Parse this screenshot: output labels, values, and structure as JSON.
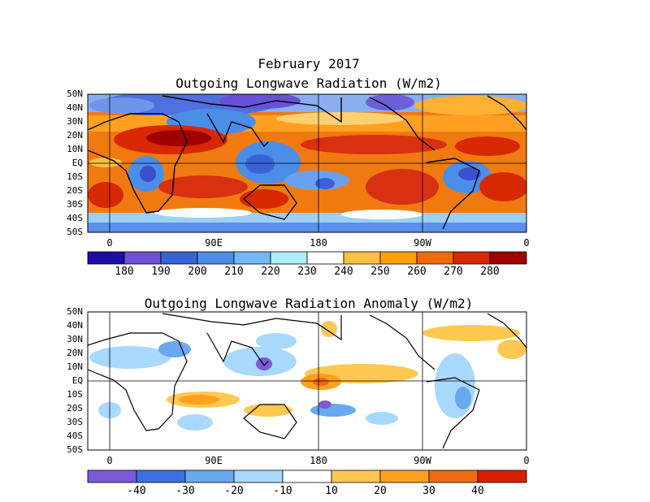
{
  "main_title": "February 2017",
  "panels": [
    {
      "title": "Outgoing Longwave Radiation (W/m2)",
      "lat_labels": [
        "50N",
        "40N",
        "30N",
        "20N",
        "10N",
        "EQ",
        "10S",
        "20S",
        "30S",
        "40S",
        "50S"
      ],
      "lon_labels": [
        "0",
        "90E",
        "180",
        "90W",
        "0"
      ],
      "colorbar": {
        "colors": [
          "#1c0ca8",
          "#6e4fd8",
          "#3a62d8",
          "#4a8ee8",
          "#72b8f4",
          "#b0ecfc",
          "#ffffff",
          "#ffc040",
          "#ffa000",
          "#f06a00",
          "#d82800",
          "#a00000"
        ],
        "labels": [
          "180",
          "190",
          "200",
          "210",
          "220",
          "230",
          "240",
          "250",
          "260",
          "270",
          "280"
        ]
      }
    },
    {
      "title": "Outgoing Longwave Radiation Anomaly (W/m2)",
      "lat_labels": [
        "50N",
        "40N",
        "30N",
        "20N",
        "10N",
        "EQ",
        "10S",
        "20S",
        "30S",
        "40S",
        "50S"
      ],
      "lon_labels": [
        "0",
        "90E",
        "180",
        "90W",
        "0"
      ],
      "colorbar": {
        "colors": [
          "#7a5ad8",
          "#3a70e0",
          "#6aa8f0",
          "#a8d8fc",
          "#ffffff",
          "#ffc850",
          "#ffa020",
          "#f06a10",
          "#d82000"
        ],
        "labels": [
          "-40",
          "-30",
          "-20",
          "-10",
          "10",
          "20",
          "30",
          "40"
        ]
      }
    }
  ]
}
